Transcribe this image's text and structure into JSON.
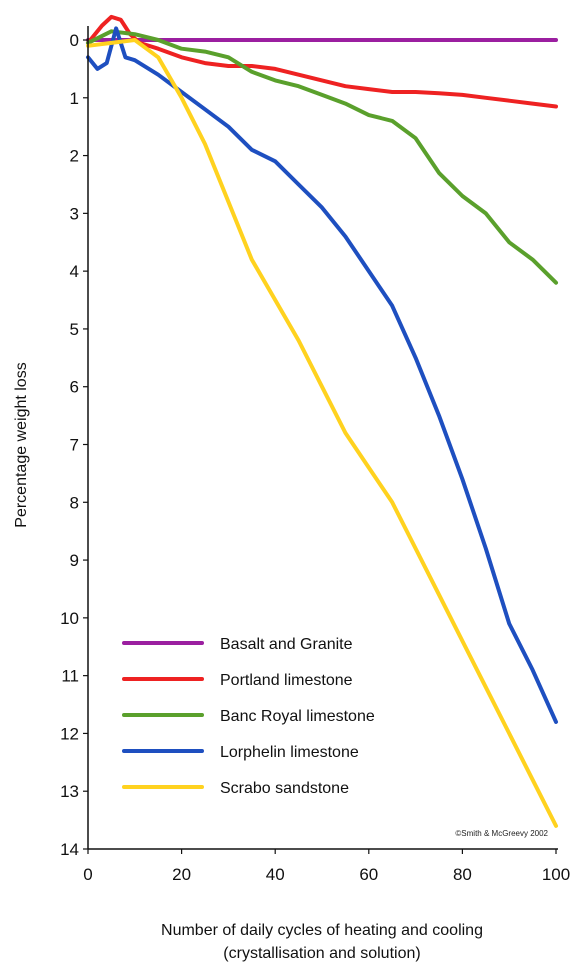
{
  "chart_data": {
    "type": "line",
    "ylabel": "Percentage weight loss",
    "xlabel_line1": "Number of daily cycles of heating and cooling",
    "xlabel_line2": "(crystallisation and solution)",
    "xlim": [
      0,
      100
    ],
    "ylim": [
      0,
      14
    ],
    "y_inverted": true,
    "xticks": [
      0,
      20,
      40,
      60,
      80,
      100
    ],
    "yticks": [
      0,
      1,
      2,
      3,
      4,
      5,
      6,
      7,
      8,
      9,
      10,
      11,
      12,
      13,
      14
    ],
    "grid": false,
    "legend_position": "bottom-left",
    "credit": "©Smith & McGreevy 2002",
    "series": [
      {
        "name": "Basalt and Granite",
        "color": "#9b1fa0",
        "x": [
          0,
          100
        ],
        "y": [
          0,
          0
        ]
      },
      {
        "name": "Portland limestone",
        "color": "#ee2222",
        "x": [
          0,
          3,
          5,
          7,
          9,
          11,
          15,
          20,
          25,
          30,
          35,
          40,
          45,
          50,
          55,
          60,
          65,
          70,
          75,
          80,
          85,
          90,
          95,
          100
        ],
        "y": [
          0.05,
          -0.25,
          -0.4,
          -0.35,
          -0.1,
          0.05,
          0.15,
          0.3,
          0.4,
          0.45,
          0.45,
          0.5,
          0.6,
          0.7,
          0.8,
          0.85,
          0.9,
          0.9,
          0.92,
          0.95,
          1.0,
          1.05,
          1.1,
          1.15
        ]
      },
      {
        "name": "Banc Royal limestone",
        "color": "#5aa02c",
        "x": [
          0,
          5,
          10,
          15,
          20,
          25,
          30,
          35,
          40,
          45,
          50,
          55,
          60,
          65,
          70,
          75,
          80,
          85,
          90,
          95,
          100
        ],
        "y": [
          0.05,
          -0.15,
          -0.1,
          0.0,
          0.15,
          0.2,
          0.3,
          0.55,
          0.7,
          0.8,
          0.95,
          1.1,
          1.3,
          1.4,
          1.7,
          2.3,
          2.7,
          3.0,
          3.5,
          3.8,
          4.2
        ]
      },
      {
        "name": "Lorphelin limestone",
        "color": "#1e4fc0",
        "x": [
          0,
          2,
          4,
          6,
          8,
          10,
          15,
          20,
          25,
          30,
          35,
          40,
          45,
          50,
          55,
          60,
          65,
          70,
          75,
          80,
          85,
          90,
          95,
          100
        ],
        "y": [
          0.3,
          0.5,
          0.4,
          -0.2,
          0.3,
          0.35,
          0.6,
          0.9,
          1.2,
          1.5,
          1.9,
          2.1,
          2.5,
          2.9,
          3.4,
          4.0,
          4.6,
          5.5,
          6.5,
          7.6,
          8.8,
          10.1,
          10.9,
          11.8
        ]
      },
      {
        "name": "Scrabo sandstone",
        "color": "#ffd21f",
        "x": [
          0,
          5,
          10,
          15,
          20,
          25,
          30,
          35,
          40,
          45,
          50,
          55,
          60,
          65,
          70,
          75,
          80,
          85,
          90,
          95,
          100
        ],
        "y": [
          0.1,
          0.05,
          0.0,
          0.3,
          1.0,
          1.8,
          2.8,
          3.8,
          4.5,
          5.2,
          6.0,
          6.8,
          7.4,
          8.0,
          8.8,
          9.6,
          10.4,
          11.2,
          12.0,
          12.8,
          13.6
        ]
      }
    ]
  }
}
